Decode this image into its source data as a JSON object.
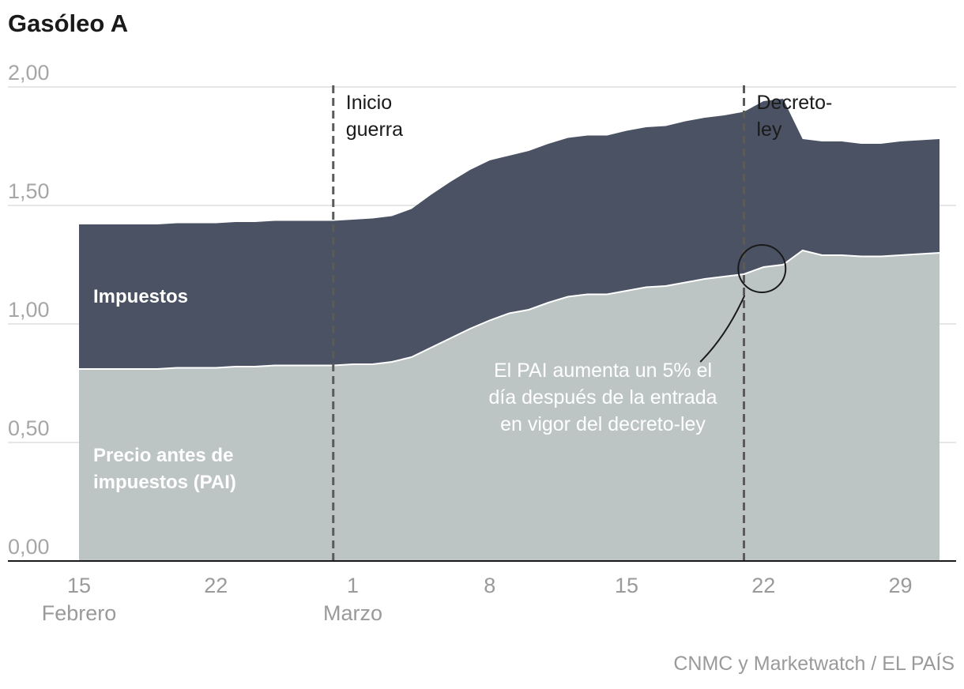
{
  "title": "Gasóleo A",
  "source": "CNMC y Marketwatch / EL PAÍS",
  "colors": {
    "impuestos": "#4a5263",
    "pai": "#bdc5c4",
    "grid": "#dddddd",
    "axis": "#1a1a1a",
    "ref_line": "#5a5a5a"
  },
  "chart_data": {
    "type": "area",
    "stacked": true,
    "title": "Gasóleo A",
    "xlabel": "",
    "ylabel": "",
    "ylim": [
      0,
      2
    ],
    "yticks": [
      "0,00",
      "0,50",
      "1,00",
      "1,50",
      "2,00"
    ],
    "grid": "horizontal",
    "xticks": [
      {
        "day": 0,
        "label": "15",
        "sublabel": "Febrero"
      },
      {
        "day": 7,
        "label": "22",
        "sublabel": ""
      },
      {
        "day": 14,
        "label": "1",
        "sublabel": "Marzo"
      },
      {
        "day": 21,
        "label": "8",
        "sublabel": ""
      },
      {
        "day": 28,
        "label": "15",
        "sublabel": ""
      },
      {
        "day": 35,
        "label": "22",
        "sublabel": ""
      },
      {
        "day": 42,
        "label": "29",
        "sublabel": ""
      }
    ],
    "x": [
      "15 Feb",
      "16 Feb",
      "17 Feb",
      "18 Feb",
      "19 Feb",
      "20 Feb",
      "21 Feb",
      "22 Feb",
      "23 Feb",
      "24 Feb",
      "25 Feb",
      "26 Feb",
      "27 Feb",
      "28 Feb",
      "1 Mar",
      "2 Mar",
      "3 Mar",
      "4 Mar",
      "5 Mar",
      "6 Mar",
      "7 Mar",
      "8 Mar",
      "9 Mar",
      "10 Mar",
      "11 Mar",
      "12 Mar",
      "13 Mar",
      "14 Mar",
      "15 Mar",
      "16 Mar",
      "17 Mar",
      "18 Mar",
      "19 Mar",
      "20 Mar",
      "21 Mar",
      "22 Mar",
      "23 Mar",
      "24 Mar",
      "25 Mar",
      "26 Mar",
      "27 Mar",
      "28 Mar",
      "29 Mar",
      "30 Mar",
      "31 Mar"
    ],
    "series": [
      {
        "name": "Precio antes de impuestos (PAI)",
        "values": [
          0.81,
          0.81,
          0.81,
          0.81,
          0.81,
          0.815,
          0.815,
          0.815,
          0.82,
          0.82,
          0.825,
          0.825,
          0.825,
          0.825,
          0.83,
          0.83,
          0.84,
          0.86,
          0.9,
          0.94,
          0.98,
          1.015,
          1.045,
          1.06,
          1.09,
          1.115,
          1.125,
          1.125,
          1.14,
          1.155,
          1.16,
          1.175,
          1.19,
          1.2,
          1.21,
          1.24,
          1.25,
          1.31,
          1.29,
          1.29,
          1.285,
          1.285,
          1.29,
          1.295,
          1.3
        ]
      },
      {
        "name": "Impuestos",
        "values": [
          0.61,
          0.61,
          0.61,
          0.61,
          0.61,
          0.61,
          0.61,
          0.61,
          0.61,
          0.61,
          0.61,
          0.61,
          0.61,
          0.61,
          0.61,
          0.615,
          0.615,
          0.625,
          0.645,
          0.66,
          0.67,
          0.675,
          0.665,
          0.67,
          0.67,
          0.67,
          0.67,
          0.67,
          0.675,
          0.675,
          0.675,
          0.68,
          0.68,
          0.68,
          0.685,
          0.7,
          0.7,
          0.47,
          0.48,
          0.48,
          0.475,
          0.475,
          0.48,
          0.48,
          0.48
        ]
      }
    ],
    "reference_lines": [
      {
        "day": 13,
        "label": [
          "Inicio",
          "guerra"
        ]
      },
      {
        "day": 34,
        "label": [
          "Decreto-",
          "ley"
        ]
      }
    ],
    "area_labels": [
      {
        "series": "Impuestos",
        "lines": [
          "Impuestos"
        ]
      },
      {
        "series": "Precio antes de impuestos (PAI)",
        "lines": [
          "Precio antes de",
          "impuestos (PAI)"
        ]
      }
    ],
    "annotation": {
      "day": 35,
      "lines": [
        "El PAI aumenta un 5% el",
        "día después de la entrada",
        "en vigor del decreto-ley"
      ]
    }
  }
}
